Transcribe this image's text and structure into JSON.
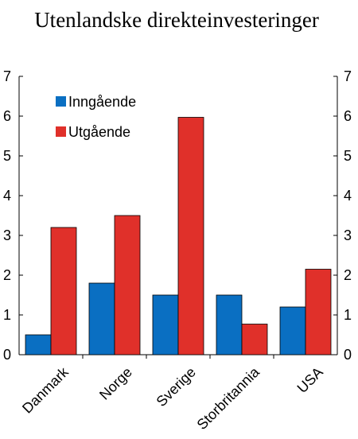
{
  "chart_data": {
    "type": "bar",
    "title": "Utenlandske direkteinvesteringer",
    "categories": [
      "Danmark",
      "Norge",
      "Sverige",
      "Storbritannia",
      "USA"
    ],
    "series": [
      {
        "name": "Inngående",
        "color": "#0a6fc2",
        "values": [
          0.5,
          1.8,
          1.5,
          1.5,
          1.2
        ]
      },
      {
        "name": "Utgående",
        "color": "#e0302a",
        "values": [
          3.2,
          3.5,
          5.97,
          0.77,
          2.15
        ]
      }
    ],
    "ylim": [
      0,
      7
    ],
    "yticks": [
      0,
      1,
      2,
      3,
      4,
      5,
      6,
      7
    ],
    "right_axis": true,
    "grid": false,
    "legend_position": "top-left"
  }
}
